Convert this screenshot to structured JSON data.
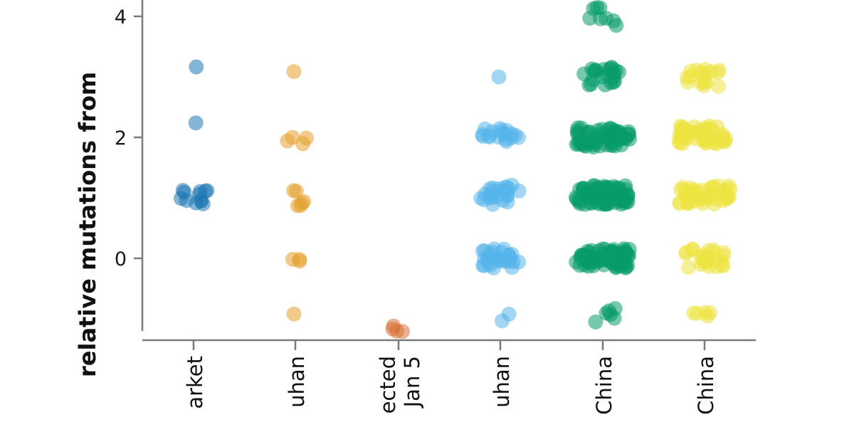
{
  "chart_data": {
    "type": "scatter",
    "title": "",
    "ylabel": "relative mutations from",
    "xlabel": "",
    "ylim": [
      -1.3,
      4.3
    ],
    "yticks": [
      "0",
      "2",
      "4"
    ],
    "ytick_values": [
      0,
      2,
      4
    ],
    "grid": false,
    "categories": [
      {
        "lines": [
          "arket"
        ],
        "color": "#1f77b4"
      },
      {
        "lines": [
          "uhan"
        ],
        "color": "#e6a12e"
      },
      {
        "lines": [
          "ected",
          "Jan 5"
        ],
        "color": "#d9733a"
      },
      {
        "lines": [
          "uhan"
        ],
        "color": "#56b4e9"
      },
      {
        "lines": [
          "China"
        ],
        "color": "#079b6b"
      },
      {
        "lines": [
          "China"
        ],
        "color": "#ede441"
      }
    ],
    "series": [
      {
        "category_index": 0,
        "levels": [
          {
            "y": 3.2,
            "count": 1
          },
          {
            "y": 2.15,
            "count": 1
          },
          {
            "y": 1.0,
            "count": 12
          }
        ]
      },
      {
        "category_index": 1,
        "levels": [
          {
            "y": 3.1,
            "count": 1
          },
          {
            "y": 2.0,
            "count": 4
          },
          {
            "y": 1.0,
            "count": 6
          },
          {
            "y": 0.0,
            "count": 3
          },
          {
            "y": -1.0,
            "count": 1
          }
        ]
      },
      {
        "category_index": 2,
        "levels": [
          {
            "y": -1.05,
            "count": 4
          }
        ]
      },
      {
        "category_index": 3,
        "levels": [
          {
            "y": 3.05,
            "count": 1
          },
          {
            "y": 2.0,
            "count": 18
          },
          {
            "y": 1.05,
            "count": 22
          },
          {
            "y": 0.0,
            "count": 28
          },
          {
            "y": -1.0,
            "count": 2
          }
        ]
      },
      {
        "category_index": 4,
        "levels": [
          {
            "y": 4.0,
            "count": 8
          },
          {
            "y": 3.0,
            "count": 22
          },
          {
            "y": 2.0,
            "count": 60
          },
          {
            "y": 1.05,
            "count": 75
          },
          {
            "y": 0.0,
            "count": 70
          },
          {
            "y": -0.9,
            "count": 6
          }
        ]
      },
      {
        "category_index": 5,
        "levels": [
          {
            "y": 3.0,
            "count": 16
          },
          {
            "y": 2.05,
            "count": 45
          },
          {
            "y": 1.05,
            "count": 45
          },
          {
            "y": 0.0,
            "count": 25
          },
          {
            "y": -0.95,
            "count": 5
          }
        ]
      }
    ]
  }
}
